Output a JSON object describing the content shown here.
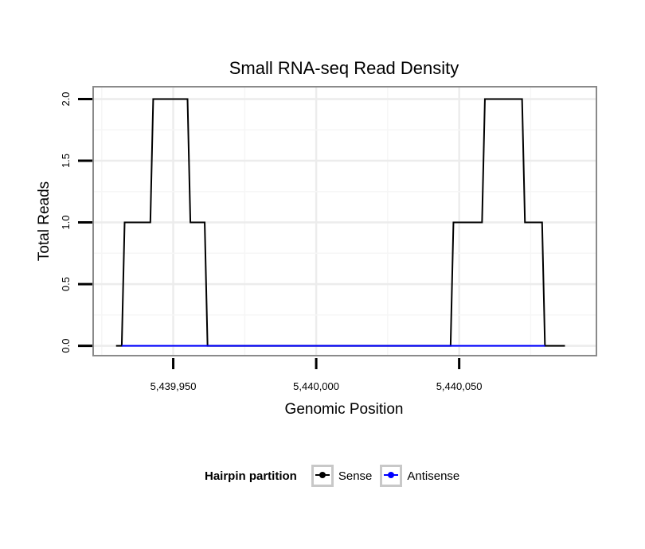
{
  "chart_data": {
    "type": "line",
    "title": "Small RNA-seq Read Density",
    "xlabel": "Genomic Position",
    "ylabel": "Total Reads",
    "xlim": [
      5439922,
      5440098
    ],
    "ylim": [
      -0.08,
      2.1
    ],
    "x_ticks": [
      5439950,
      5440000,
      5440050
    ],
    "x_tick_labels": [
      "5,439,950",
      "5,440,000",
      "5,440,050"
    ],
    "y_ticks": [
      0,
      0.5,
      1,
      1.5,
      2
    ],
    "y_tick_labels": [
      "0.0",
      "0.5",
      "1.0",
      "1.5",
      "2.0"
    ],
    "grid": true,
    "series": [
      {
        "name": "Sense",
        "color": "#000000",
        "x": [
          5439930,
          5439932,
          5439933,
          5439942,
          5439943,
          5439955,
          5439956,
          5439961,
          5439962,
          5440047,
          5440048,
          5440058,
          5440059,
          5440072,
          5440073,
          5440079,
          5440080,
          5440087
        ],
        "y": [
          0,
          0,
          1,
          1,
          2,
          2,
          1,
          1,
          0,
          0,
          1,
          1,
          2,
          2,
          1,
          1,
          0,
          0
        ]
      },
      {
        "name": "Antisense",
        "color": "#0000ff",
        "x": [
          5439932,
          5439962,
          5440047,
          5440080
        ],
        "y": [
          0,
          0,
          0,
          0
        ]
      }
    ]
  },
  "legend": {
    "title": "Hairpin partition",
    "items": [
      {
        "label": "Sense",
        "color": "#000000"
      },
      {
        "label": "Antisense",
        "color": "#0000ff"
      }
    ]
  }
}
